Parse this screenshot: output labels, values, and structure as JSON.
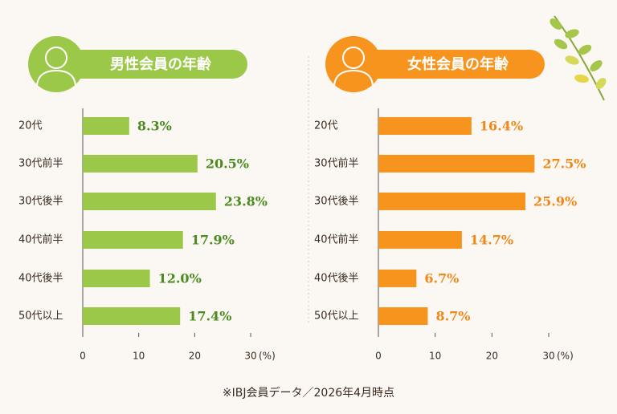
{
  "chart_data": [
    {
      "type": "bar",
      "orientation": "horizontal",
      "title": "男性会員の年齢",
      "categories": [
        "20代",
        "30代前半",
        "30代後半",
        "40代前半",
        "40代後半",
        "50代以上"
      ],
      "values": [
        8.3,
        20.5,
        23.8,
        17.9,
        12.0,
        17.4
      ],
      "value_labels": [
        "8.3%",
        "20.5%",
        "23.8%",
        "17.9%",
        "12.0%",
        "17.4%"
      ],
      "color": "#9cc84a",
      "label_color": "#4b8a1f",
      "xlim": [
        0,
        30
      ],
      "xticks": [
        0,
        10,
        20,
        30
      ],
      "x_unit": "(%)"
    },
    {
      "type": "bar",
      "orientation": "horizontal",
      "title": "女性会員の年齢",
      "categories": [
        "20代",
        "30代前半",
        "30代後半",
        "40代前半",
        "40代後半",
        "50代以上"
      ],
      "values": [
        16.4,
        27.5,
        25.9,
        14.7,
        6.7,
        8.7
      ],
      "value_labels": [
        "16.4%",
        "27.5%",
        "25.9%",
        "14.7%",
        "6.7%",
        "8.7%"
      ],
      "color": "#f7941d",
      "label_color": "#f08818",
      "xlim": [
        0,
        30
      ],
      "xticks": [
        0,
        10,
        20,
        30
      ],
      "x_unit": "(%)"
    }
  ],
  "note": "※IBJ会員データ／2026年4月時点"
}
